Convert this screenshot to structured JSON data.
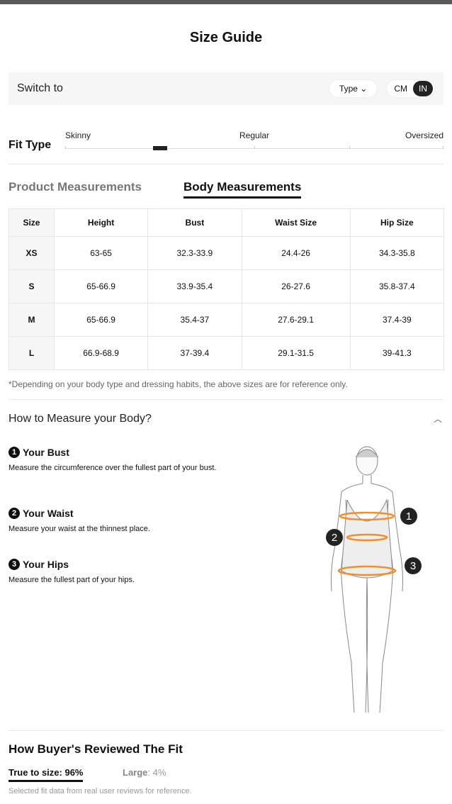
{
  "title": "Size Guide",
  "switch": {
    "label": "Switch to",
    "type_label": "Type",
    "units": [
      "CM",
      "IN"
    ],
    "selected_unit": "IN"
  },
  "fit": {
    "label": "Fit Type",
    "scale": [
      "Skinny",
      "Regular",
      "Oversized"
    ],
    "position_percent": 25
  },
  "tabs": [
    {
      "label": "Product Measurements",
      "active": false
    },
    {
      "label": "Body Measurements",
      "active": true
    }
  ],
  "table": {
    "headers": [
      "Size",
      "Height",
      "Bust",
      "Waist Size",
      "Hip Size"
    ],
    "rows": [
      [
        "XS",
        "63-65",
        "32.3-33.9",
        "24.4-26",
        "34.3-35.8"
      ],
      [
        "S",
        "65-66.9",
        "33.9-35.4",
        "26-27.6",
        "35.8-37.4"
      ],
      [
        "M",
        "65-66.9",
        "35.4-37",
        "27.6-29.1",
        "37.4-39"
      ],
      [
        "L",
        "66.9-68.9",
        "37-39.4",
        "29.1-31.5",
        "39-41.3"
      ]
    ]
  },
  "note": "*Depending on your body type and dressing habits, the above sizes are for reference only.",
  "how": {
    "title": "How to Measure your Body?",
    "steps": [
      {
        "num": "1",
        "title": "Your Bust",
        "desc": "Measure the circumference over the fullest part of your bust."
      },
      {
        "num": "2",
        "title": "Your Waist",
        "desc": "Measure your waist at the thinnest place."
      },
      {
        "num": "3",
        "title": "Your Hips",
        "desc": "Measure the fullest part of your hips."
      }
    ]
  },
  "accent": "#f0902a",
  "review": {
    "title": "How Buyer's Reviewed The Fit",
    "true_to_size": "True to size: 96%",
    "large_label": "Large",
    "large_value": ": 4%",
    "footnote": "Selected fit data from real user reviews for reference."
  }
}
